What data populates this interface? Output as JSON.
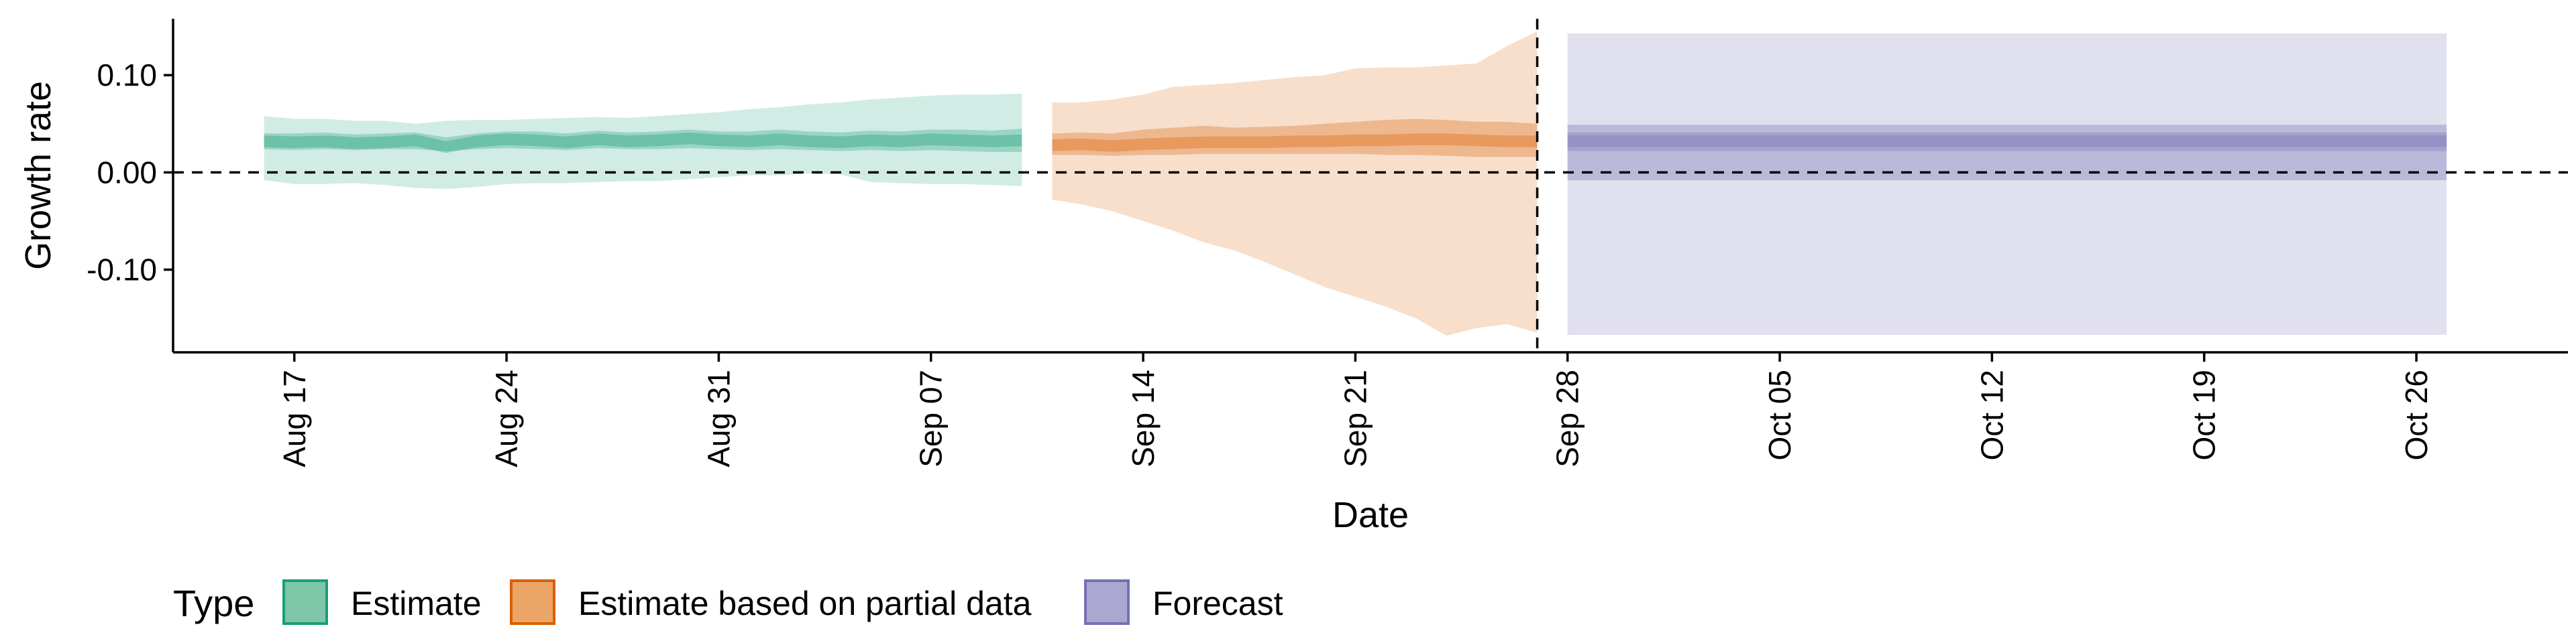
{
  "chart_data": {
    "type": "area",
    "xlabel": "Date",
    "ylabel": "Growth rate",
    "ylim": [
      -0.185,
      0.158
    ],
    "xlim": [
      "2020-08-13",
      "2020-10-31"
    ],
    "y_ticks": [
      -0.1,
      0.0,
      0.1
    ],
    "y_tick_labels": [
      "-0.10",
      "0.00",
      "0.10"
    ],
    "x_ticks": [
      "2020-08-17",
      "2020-08-24",
      "2020-08-31",
      "2020-09-07",
      "2020-09-14",
      "2020-09-21",
      "2020-09-28",
      "2020-10-05",
      "2020-10-12",
      "2020-10-19",
      "2020-10-26"
    ],
    "x_tick_labels": [
      "Aug 17",
      "Aug 24",
      "Aug 31",
      "Sep 07",
      "Sep 14",
      "Sep 21",
      "Sep 28",
      "Oct 05",
      "Oct 12",
      "Oct 19",
      "Oct 26"
    ],
    "hline": 0.0,
    "vline": "2020-09-27",
    "grid": false,
    "legend": {
      "title": "Type",
      "position": "bottom-left",
      "entries": [
        {
          "name": "Estimate",
          "fill": "#7fc5a8",
          "stroke": "#1b9e77"
        },
        {
          "name": "Estimate based on partial data",
          "fill": "#eba566",
          "stroke": "#d95f02"
        },
        {
          "name": "Forecast",
          "fill": "#aaa8d0",
          "stroke": "#7570b3"
        }
      ]
    },
    "series": [
      {
        "name": "Estimate",
        "color": "#1b9e77",
        "x": [
          "2020-08-16",
          "2020-08-17",
          "2020-08-18",
          "2020-08-19",
          "2020-08-20",
          "2020-08-21",
          "2020-08-22",
          "2020-08-23",
          "2020-08-24",
          "2020-08-25",
          "2020-08-26",
          "2020-08-27",
          "2020-08-28",
          "2020-08-29",
          "2020-08-30",
          "2020-08-31",
          "2020-09-01",
          "2020-09-02",
          "2020-09-03",
          "2020-09-04",
          "2020-09-05",
          "2020-09-06",
          "2020-09-07",
          "2020-09-08",
          "2020-09-09",
          "2020-09-10"
        ],
        "median": [
          0.032,
          0.031,
          0.032,
          0.03,
          0.031,
          0.033,
          0.026,
          0.032,
          0.034,
          0.033,
          0.031,
          0.034,
          0.032,
          0.033,
          0.035,
          0.033,
          0.032,
          0.034,
          0.032,
          0.031,
          0.033,
          0.032,
          0.034,
          0.033,
          0.032,
          0.033
        ],
        "lower_50": [
          0.024,
          0.023,
          0.024,
          0.023,
          0.024,
          0.024,
          0.022,
          0.024,
          0.025,
          0.024,
          0.023,
          0.025,
          0.024,
          0.024,
          0.025,
          0.024,
          0.023,
          0.024,
          0.023,
          0.022,
          0.023,
          0.022,
          0.023,
          0.022,
          0.021,
          0.021
        ],
        "upper_50": [
          0.04,
          0.04,
          0.041,
          0.039,
          0.04,
          0.041,
          0.036,
          0.04,
          0.042,
          0.042,
          0.04,
          0.043,
          0.041,
          0.042,
          0.044,
          0.042,
          0.042,
          0.044,
          0.042,
          0.041,
          0.043,
          0.042,
          0.044,
          0.044,
          0.043,
          0.045
        ],
        "lower_90": [
          -0.008,
          -0.012,
          -0.012,
          -0.011,
          -0.013,
          -0.016,
          -0.017,
          -0.015,
          -0.012,
          -0.011,
          -0.011,
          -0.01,
          -0.009,
          -0.009,
          -0.007,
          -0.005,
          -0.003,
          -0.003,
          -0.001,
          -0.002,
          -0.01,
          -0.011,
          -0.012,
          -0.012,
          -0.013,
          -0.014
        ],
        "upper_90": [
          0.058,
          0.055,
          0.055,
          0.053,
          0.053,
          0.05,
          0.053,
          0.054,
          0.054,
          0.055,
          0.056,
          0.057,
          0.056,
          0.058,
          0.06,
          0.062,
          0.065,
          0.067,
          0.07,
          0.072,
          0.075,
          0.077,
          0.079,
          0.08,
          0.08,
          0.081
        ]
      },
      {
        "name": "Estimate based on partial data",
        "color": "#d95f02",
        "x": [
          "2020-09-11",
          "2020-09-12",
          "2020-09-13",
          "2020-09-14",
          "2020-09-15",
          "2020-09-16",
          "2020-09-17",
          "2020-09-18",
          "2020-09-19",
          "2020-09-20",
          "2020-09-21",
          "2020-09-22",
          "2020-09-23",
          "2020-09-24",
          "2020-09-25",
          "2020-09-26",
          "2020-09-27"
        ],
        "median": [
          0.028,
          0.029,
          0.027,
          0.029,
          0.03,
          0.031,
          0.031,
          0.031,
          0.032,
          0.032,
          0.033,
          0.033,
          0.034,
          0.034,
          0.033,
          0.032,
          0.032
        ],
        "lower_50": [
          0.018,
          0.018,
          0.017,
          0.018,
          0.018,
          0.019,
          0.019,
          0.019,
          0.019,
          0.019,
          0.019,
          0.018,
          0.018,
          0.017,
          0.016,
          0.016,
          0.016
        ],
        "upper_50": [
          0.04,
          0.041,
          0.04,
          0.044,
          0.046,
          0.048,
          0.046,
          0.047,
          0.048,
          0.05,
          0.052,
          0.054,
          0.055,
          0.054,
          0.052,
          0.052,
          0.05
        ],
        "lower_90": [
          -0.028,
          -0.033,
          -0.04,
          -0.05,
          -0.06,
          -0.072,
          -0.08,
          -0.092,
          -0.105,
          -0.118,
          -0.128,
          -0.138,
          -0.15,
          -0.168,
          -0.16,
          -0.156,
          -0.165
        ],
        "upper_90": [
          0.072,
          0.072,
          0.075,
          0.08,
          0.088,
          0.09,
          0.092,
          0.095,
          0.098,
          0.1,
          0.107,
          0.108,
          0.108,
          0.11,
          0.112,
          0.13,
          0.145
        ]
      },
      {
        "name": "Forecast",
        "color": "#7570b3",
        "x": [
          "2020-09-28",
          "2020-10-27"
        ],
        "median": [
          0.032,
          0.032
        ],
        "lower_50": [
          0.022,
          0.022
        ],
        "upper_50": [
          0.041,
          0.041
        ],
        "lower_90": [
          -0.008,
          -0.008
        ],
        "upper_90": [
          0.049,
          0.049
        ],
        "lower_outer": [
          -0.167,
          -0.167
        ],
        "upper_outer": [
          0.143,
          0.143
        ]
      }
    ]
  }
}
